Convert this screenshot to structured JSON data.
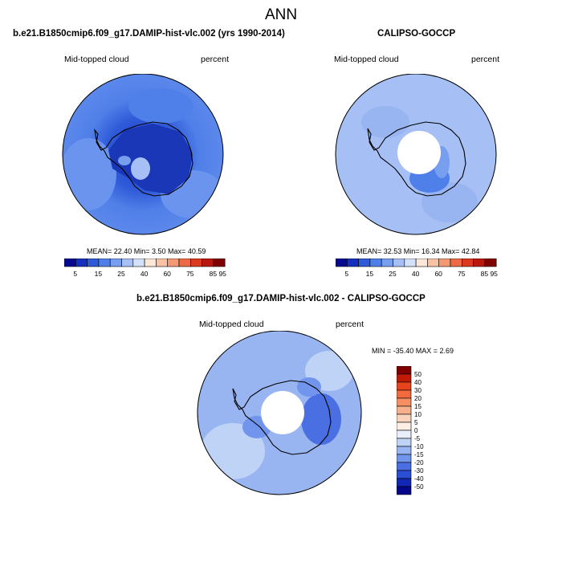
{
  "title": "ANN",
  "panels": [
    {
      "heading": "b.e21.B1850cmip6.f09_g17.DAMIP-hist-vlc.002 (yrs 1990-2014)",
      "left_label": "Mid-topped cloud",
      "right_label": "percent",
      "stats": "MEAN=  22.40  Min=   3.50  Max=  40.59"
    },
    {
      "heading": "CALIPSO-GOCCP",
      "left_label": "Mid-topped cloud",
      "right_label": "percent",
      "stats": "MEAN=  32.53  Min=  16.34  Max=  42.84"
    },
    {
      "heading": "b.e21.B1850cmip6.f09_g17.DAMIP-hist-vlc.002 - CALIPSO-GOCCP",
      "left_label": "Mid-topped cloud",
      "right_label": "percent",
      "stats": "MIN = -35.40 MAX =   2.69"
    }
  ],
  "abs_colorbar": {
    "colors": [
      "#08088e",
      "#1530c0",
      "#2f5ad8",
      "#4f7fe8",
      "#789ef0",
      "#a6c0f5",
      "#d3e2fa",
      "#fde7d9",
      "#f8c3a5",
      "#f39a74",
      "#ec6a45",
      "#dc3a1e",
      "#b8180d",
      "#800000"
    ],
    "labels": [
      "5",
      "15",
      "25",
      "40",
      "60",
      "75",
      "85",
      "95"
    ]
  },
  "diff_colorbar": {
    "colors": [
      "#800000",
      "#c21a08",
      "#e8441c",
      "#f26a3e",
      "#f58f63",
      "#f7b08c",
      "#fad3bd",
      "#fdeee6",
      "#e9f0fc",
      "#bfd3f7",
      "#98b5f1",
      "#7194ec",
      "#4a6fe2",
      "#2a4ed4",
      "#1228b4",
      "#06068a"
    ],
    "labels": [
      "50",
      "40",
      "30",
      "20",
      "15",
      "10",
      "5",
      "0",
      "-5",
      "-10",
      "-15",
      "-20",
      "-30",
      "-40",
      "-50"
    ]
  },
  "icons": {
    "map_disc": "south-polar-map",
    "continent": "antarctica-outline"
  }
}
